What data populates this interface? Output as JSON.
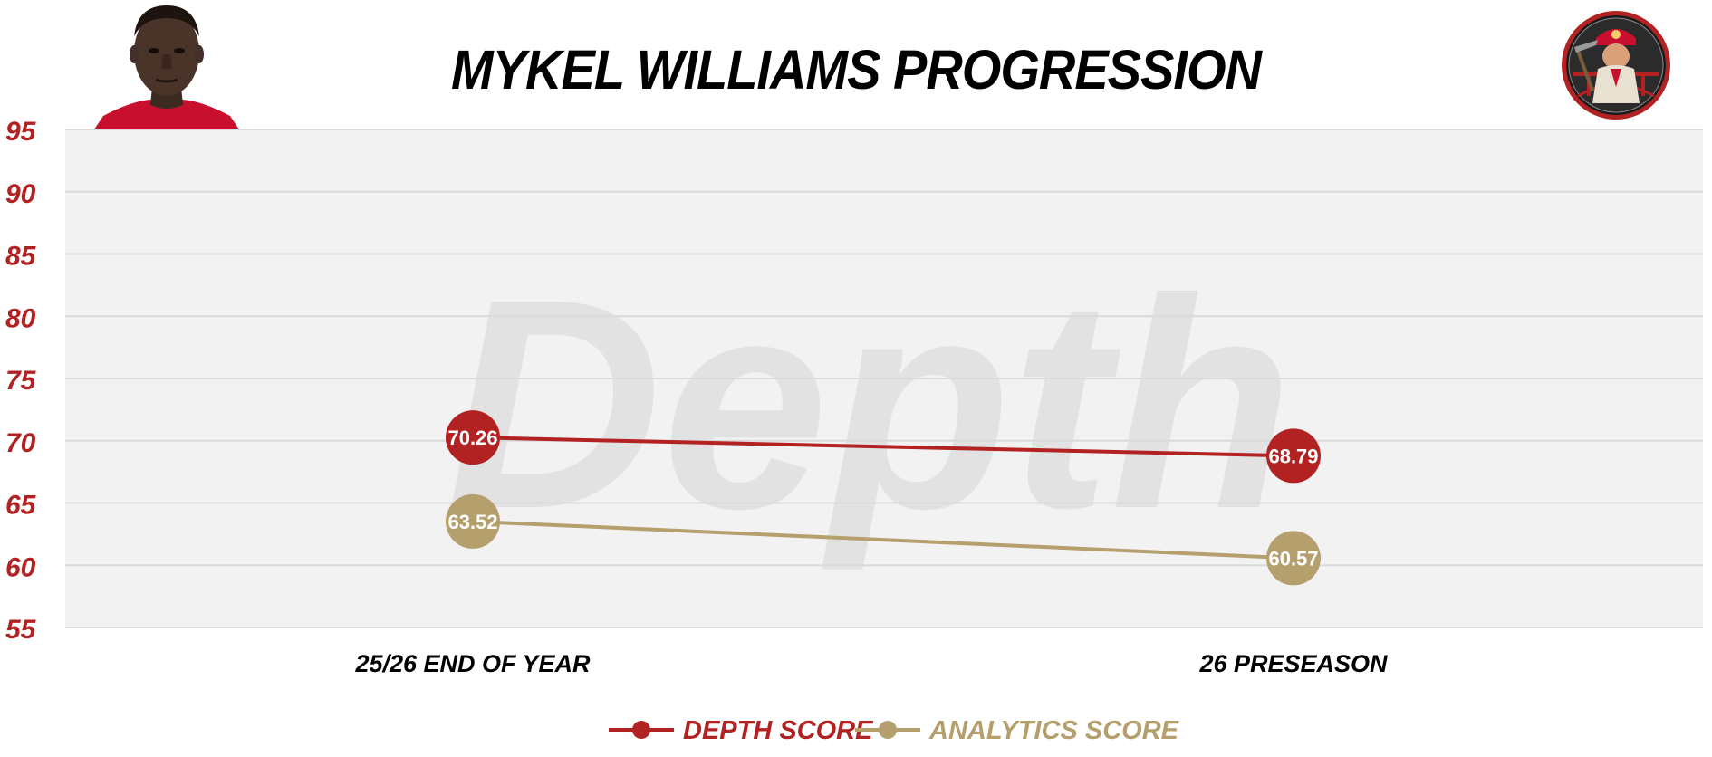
{
  "chart_data": {
    "type": "line",
    "title": "MYKEL WILLIAMS PROGRESSION",
    "categories": [
      "25/26 END OF YEAR",
      "26 PRESEASON"
    ],
    "ylim": [
      55,
      95
    ],
    "yticks": [
      "95",
      "90",
      "85",
      "80",
      "75",
      "70",
      "65",
      "60",
      "55"
    ],
    "grid": true,
    "legend_position": "bottom-center",
    "watermark": "Depth",
    "series": [
      {
        "name": "DEPTH SCORE",
        "color": "#b22222",
        "values": [
          70.26,
          68.79
        ],
        "labels": [
          "70.26",
          "68.79"
        ]
      },
      {
        "name": "ANALYTICS SCORE",
        "color": "#b5a06d",
        "values": [
          63.52,
          60.57
        ],
        "labels": [
          "63.52",
          "60.57"
        ]
      }
    ]
  },
  "colors": {
    "axis_text": "#b22222",
    "plot_background": "#f2f2f2",
    "grid": "#d9d9d9",
    "title": "#000000"
  },
  "images": {
    "player_photo": "player-headshot",
    "team_logo": "miner-logo-icon"
  }
}
